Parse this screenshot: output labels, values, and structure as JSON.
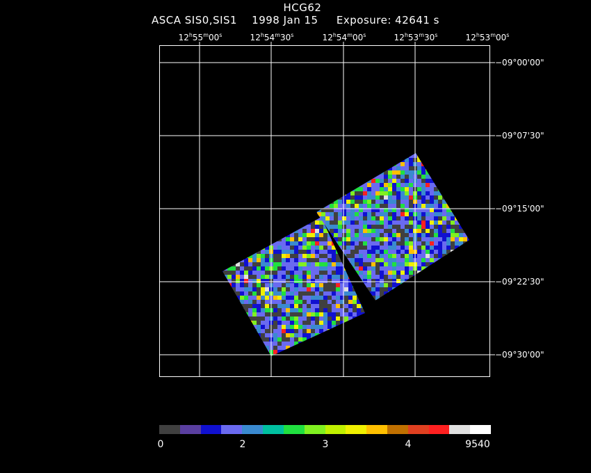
{
  "header": {
    "object": "HCG62",
    "instrument": "ASCA SIS0,SIS1",
    "date": "1998 Jan 15",
    "exposure": "Exposure: 42641 s"
  },
  "ra_ticks": [
    {
      "h": "12",
      "m": "55",
      "s": "00"
    },
    {
      "h": "12",
      "m": "54",
      "s": "30"
    },
    {
      "h": "12",
      "m": "54",
      "s": "00"
    },
    {
      "h": "12",
      "m": "53",
      "s": "30"
    },
    {
      "h": "12",
      "m": "53",
      "s": "00"
    }
  ],
  "dec_ticks": [
    "−09°00'00\"",
    "−09°07'30\"",
    "−09°15'00\"",
    "−09°22'30\"",
    "−09°30'00\""
  ],
  "colorbar": {
    "colors": [
      "#404040",
      "#5a3fa0",
      "#1010d0",
      "#6a6af0",
      "#3a8ad0",
      "#00c0a0",
      "#20e040",
      "#80f020",
      "#c0f000",
      "#f0f000",
      "#ffc000",
      "#c07000",
      "#e04020",
      "#ff2020",
      "#e0e0e0",
      "#ffffff"
    ],
    "labels": [
      "0",
      "2",
      "3",
      "4",
      "9540"
    ]
  }
}
